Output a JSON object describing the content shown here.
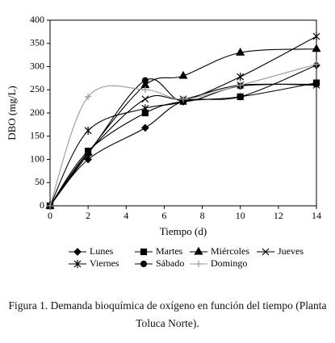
{
  "chart_data": {
    "type": "line",
    "x_label": "Tiempo (d)",
    "y_label": "DBO (mg/L)",
    "x": [
      0,
      2,
      5,
      7,
      10,
      14
    ],
    "xlim": [
      0,
      14
    ],
    "xticks": [
      0,
      2,
      4,
      6,
      8,
      10,
      12,
      14
    ],
    "ylim": [
      0,
      400
    ],
    "yticks": [
      0,
      50,
      100,
      150,
      200,
      250,
      300,
      350,
      400
    ],
    "series": [
      {
        "name": "Lunes",
        "color": "#000000",
        "marker": "diamond",
        "values": [
          0,
          100,
          168,
          225,
          235,
          303
        ]
      },
      {
        "name": "Martes",
        "color": "#000000",
        "marker": "square",
        "values": [
          0,
          118,
          200,
          225,
          235,
          265
        ]
      },
      {
        "name": "Miércoles",
        "color": "#000000",
        "marker": "triangle",
        "values": [
          0,
          115,
          260,
          280,
          330,
          338
        ]
      },
      {
        "name": "Jueves",
        "color": "#000000",
        "marker": "x",
        "values": [
          0,
          115,
          230,
          230,
          260,
          260
        ]
      },
      {
        "name": "Viernes",
        "color": "#000000",
        "marker": "asterisk",
        "values": [
          0,
          162,
          210,
          225,
          278,
          365
        ]
      },
      {
        "name": "Sábado",
        "color": "#000000",
        "marker": "circle",
        "values": [
          0,
          112,
          270,
          225,
          258,
          262
        ]
      },
      {
        "name": "Domingo",
        "color": "#999999",
        "marker": "plus",
        "values": [
          0,
          235,
          250,
          230,
          260,
          305
        ]
      }
    ]
  },
  "caption": "Figura 1. Demanda bioquímica de oxígeno en función del tiempo (Planta Toluca Norte)."
}
